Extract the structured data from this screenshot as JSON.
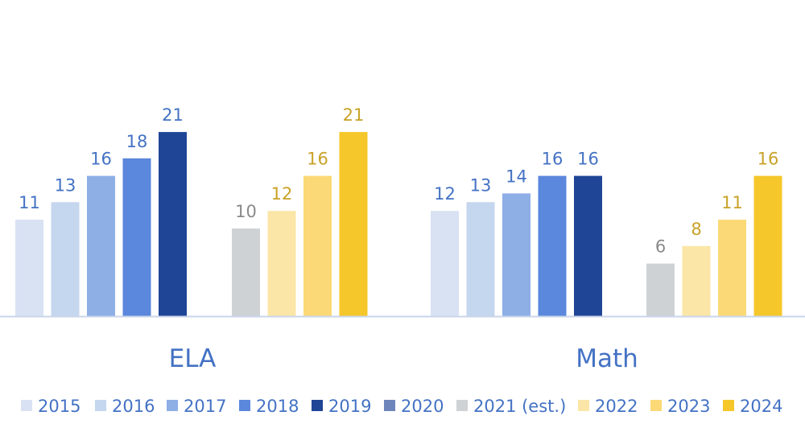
{
  "chart_data": {
    "type": "bar",
    "title": "",
    "xlabel": "",
    "ylabel": "",
    "ylim": [
      0,
      22
    ],
    "grid": false,
    "legend_position": "bottom",
    "categories": [
      "ELA",
      "Math"
    ],
    "groups": [
      {
        "category": "ELA",
        "clusters": [
          {
            "bars": [
              {
                "year": "2015",
                "value": 11
              },
              {
                "year": "2016",
                "value": 13
              },
              {
                "year": "2017",
                "value": 16
              },
              {
                "year": "2018",
                "value": 18
              },
              {
                "year": "2019",
                "value": 21
              }
            ]
          },
          {
            "bars": [
              {
                "year": "2021 (est.)",
                "value": 10
              },
              {
                "year": "2022",
                "value": 12
              },
              {
                "year": "2023",
                "value": 16
              },
              {
                "year": "2024",
                "value": 21
              }
            ]
          }
        ]
      },
      {
        "category": "Math",
        "clusters": [
          {
            "bars": [
              {
                "year": "2015",
                "value": 12
              },
              {
                "year": "2016",
                "value": 13
              },
              {
                "year": "2017",
                "value": 14
              },
              {
                "year": "2018",
                "value": 16
              },
              {
                "year": "2019",
                "value": 16
              }
            ]
          },
          {
            "bars": [
              {
                "year": "2021 (est.)",
                "value": 6
              },
              {
                "year": "2022",
                "value": 8
              },
              {
                "year": "2023",
                "value": 11
              },
              {
                "year": "2024",
                "value": 16
              }
            ]
          }
        ]
      }
    ],
    "series": [
      {
        "name": "2015",
        "color": "#d9e2f3",
        "label_color": "#4472c4"
      },
      {
        "name": "2016",
        "color": "#c5d6ef",
        "label_color": "#4472c4"
      },
      {
        "name": "2017",
        "color": "#8eaee6",
        "label_color": "#4472c4"
      },
      {
        "name": "2018",
        "color": "#5b87dc",
        "label_color": "#4472c4"
      },
      {
        "name": "2019",
        "color": "#1f4596",
        "label_color": "#4472c4"
      },
      {
        "name": "2020",
        "color": "#6d85ba",
        "label_color": "#4472c4"
      },
      {
        "name": "2021 (est.)",
        "color": "#cfd2d5",
        "label_color": "#8a8a8a"
      },
      {
        "name": "2022",
        "color": "#fbe6a8",
        "label_color": "#c9a227"
      },
      {
        "name": "2023",
        "color": "#fbd976",
        "label_color": "#c9a227"
      },
      {
        "name": "2024",
        "color": "#f5c72a",
        "label_color": "#c9a227"
      }
    ]
  }
}
